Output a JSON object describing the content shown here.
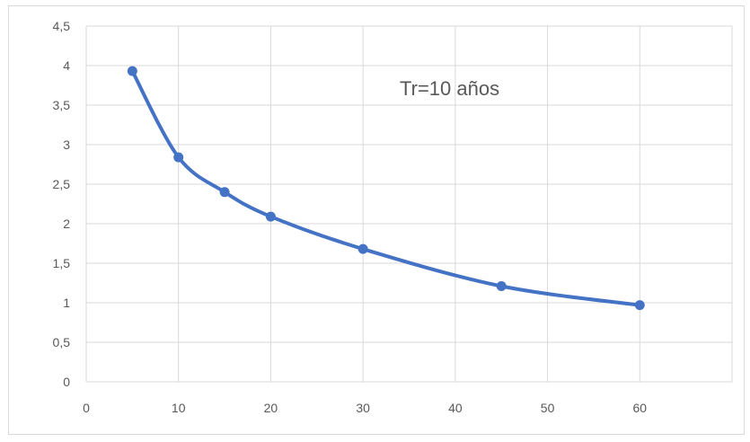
{
  "chart_data": {
    "type": "line",
    "smooth": true,
    "markers": true,
    "grid": true,
    "legend": "none",
    "annotation": "Tr=10 años",
    "xlim": [
      0,
      70
    ],
    "ylim": [
      0,
      4.5
    ],
    "x_ticks": [
      "0",
      "10",
      "20",
      "30",
      "40",
      "50",
      "60"
    ],
    "y_ticks": [
      "0",
      "0,5",
      "1",
      "1,5",
      "2",
      "2,5",
      "3",
      "3,5",
      "4",
      "4,5"
    ],
    "series": [
      {
        "color": "#4472c4",
        "x": [
          5,
          10,
          15,
          20,
          30,
          45,
          60
        ],
        "y": [
          3.93,
          2.84,
          2.4,
          2.09,
          1.68,
          1.21,
          0.97
        ]
      }
    ],
    "colors": {
      "line": "#4472c4",
      "grid": "#d9d9d9",
      "text": "#595959"
    }
  }
}
